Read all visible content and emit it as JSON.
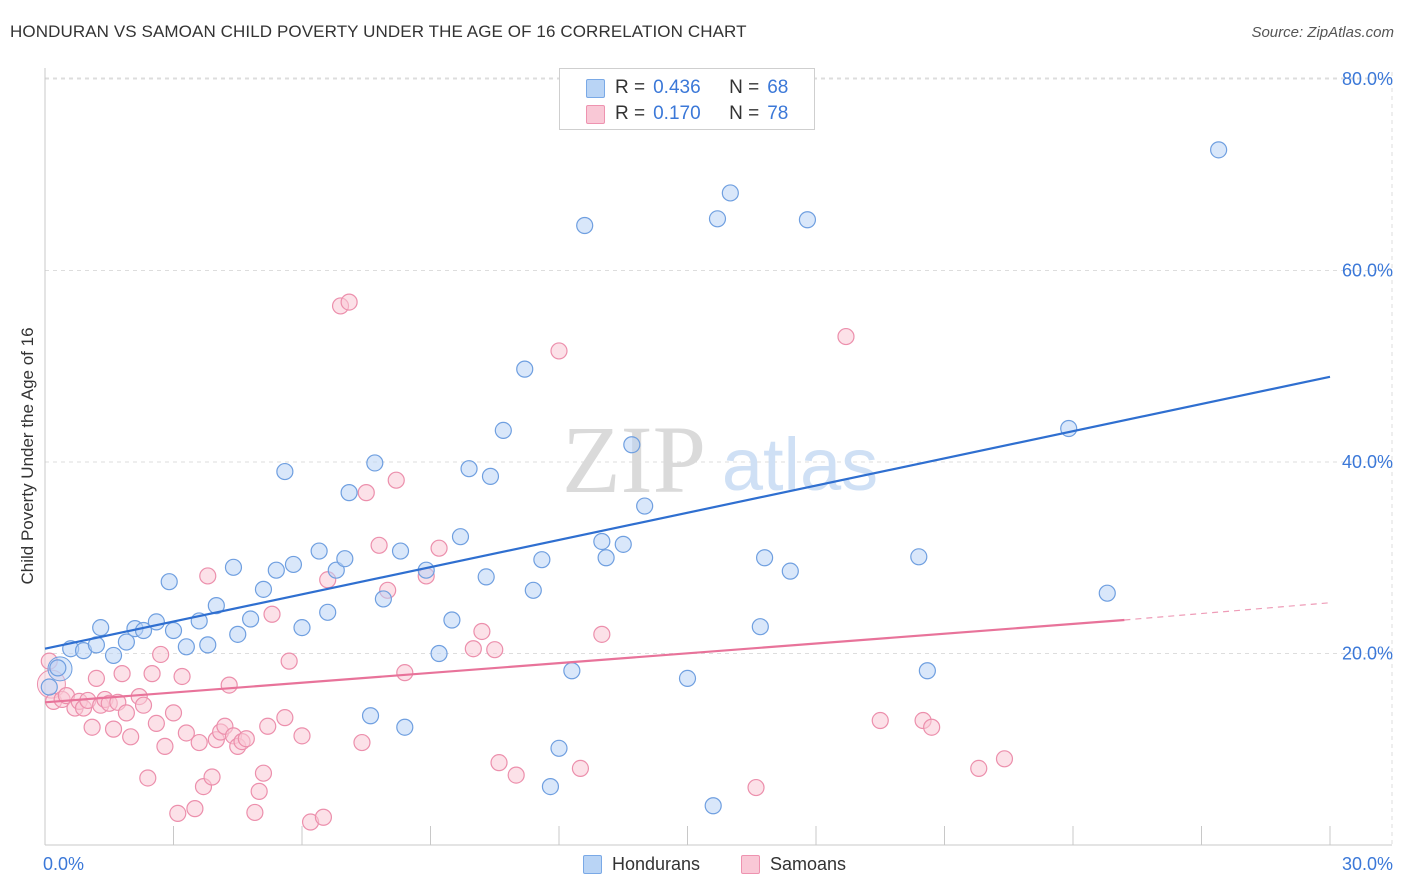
{
  "title": "HONDURAN VS SAMOAN CHILD POVERTY UNDER THE AGE OF 16 CORRELATION CHART",
  "source": "Source: ZipAtlas.com",
  "watermark": {
    "zip": "ZIP",
    "atlas": "atlas"
  },
  "legend": {
    "rows": [
      {
        "r_label": "R =",
        "r_value": "0.436",
        "n_label": "N =",
        "n_value": "68"
      },
      {
        "r_label": "R =",
        "r_value": "0.170",
        "n_label": "N =",
        "n_value": "78"
      }
    ]
  },
  "bottom_legend": {
    "hondurans": "Hondurans",
    "samoans": "Samoans"
  },
  "colors": {
    "honduran_fill": "#b9d4f5",
    "honduran_stroke": "#6f9fe0",
    "honduran_line": "#2f6fd0",
    "samoan_fill": "#f9c8d6",
    "samoan_stroke": "#ec8fac",
    "samoan_line": "#e8739a",
    "tick_label": "#3b78d8",
    "grid": "#dddddd"
  },
  "chart_data": {
    "type": "scatter",
    "title": "HONDURAN VS SAMOAN CHILD POVERTY UNDER THE AGE OF 16 CORRELATION CHART",
    "xlabel": "",
    "ylabel": "Child Poverty Under the Age of 16",
    "xlim": [
      0,
      30
    ],
    "ylim": [
      0,
      82
    ],
    "x_tick_labels": [
      {
        "value": 0,
        "label": "0.0%"
      },
      {
        "value": 30,
        "label": "30.0%"
      }
    ],
    "y_tick_labels": [
      {
        "value": 20,
        "label": "20.0%"
      },
      {
        "value": 40,
        "label": "40.0%"
      },
      {
        "value": 60,
        "label": "60.0%"
      },
      {
        "value": 80,
        "label": "80.0%"
      }
    ],
    "series": [
      {
        "name": "Hondurans",
        "R": 0.436,
        "N": 68,
        "trend": {
          "x": [
            0,
            30
          ],
          "y": [
            20.5,
            48.9
          ]
        },
        "points": [
          [
            0.1,
            16.5
          ],
          [
            0.3,
            18.5
          ],
          [
            0.6,
            20.5
          ],
          [
            0.9,
            20.3
          ],
          [
            1.2,
            20.9
          ],
          [
            1.3,
            22.7
          ],
          [
            1.6,
            19.8
          ],
          [
            1.9,
            21.2
          ],
          [
            2.1,
            22.6
          ],
          [
            2.3,
            22.4
          ],
          [
            2.6,
            23.3
          ],
          [
            2.9,
            27.5
          ],
          [
            3.0,
            22.4
          ],
          [
            3.3,
            20.7
          ],
          [
            3.6,
            23.4
          ],
          [
            3.8,
            20.9
          ],
          [
            4.0,
            25.0
          ],
          [
            4.4,
            29.0
          ],
          [
            4.5,
            22.0
          ],
          [
            4.8,
            23.6
          ],
          [
            5.1,
            26.7
          ],
          [
            5.4,
            28.7
          ],
          [
            5.6,
            39.0
          ],
          [
            5.8,
            29.3
          ],
          [
            6.0,
            22.7
          ],
          [
            6.4,
            30.7
          ],
          [
            6.6,
            24.3
          ],
          [
            6.8,
            28.7
          ],
          [
            7.0,
            29.9
          ],
          [
            7.1,
            36.8
          ],
          [
            7.6,
            13.5
          ],
          [
            7.7,
            39.9
          ],
          [
            7.9,
            25.7
          ],
          [
            8.3,
            30.7
          ],
          [
            8.4,
            12.3
          ],
          [
            8.9,
            28.7
          ],
          [
            9.2,
            20.0
          ],
          [
            9.5,
            23.5
          ],
          [
            9.7,
            32.2
          ],
          [
            9.9,
            39.3
          ],
          [
            10.3,
            28.0
          ],
          [
            10.4,
            38.5
          ],
          [
            10.7,
            43.3
          ],
          [
            11.2,
            49.7
          ],
          [
            11.4,
            26.6
          ],
          [
            11.6,
            29.8
          ],
          [
            11.8,
            6.1
          ],
          [
            12.0,
            10.1
          ],
          [
            12.3,
            18.2
          ],
          [
            12.6,
            64.7
          ],
          [
            13.0,
            31.7
          ],
          [
            13.1,
            30.0
          ],
          [
            13.5,
            31.4
          ],
          [
            13.7,
            41.8
          ],
          [
            14.0,
            35.4
          ],
          [
            15.0,
            17.4
          ],
          [
            15.6,
            4.1
          ],
          [
            15.7,
            65.4
          ],
          [
            16.0,
            68.1
          ],
          [
            16.7,
            22.8
          ],
          [
            16.8,
            30.0
          ],
          [
            17.4,
            28.6
          ],
          [
            17.8,
            65.3
          ],
          [
            20.4,
            30.1
          ],
          [
            20.6,
            18.2
          ],
          [
            23.9,
            43.5
          ],
          [
            24.8,
            26.3
          ],
          [
            27.4,
            72.6
          ]
        ]
      },
      {
        "name": "Samoans",
        "R": 0.17,
        "N": 78,
        "trend": {
          "x": [
            0,
            25.2
          ],
          "y": [
            14.9,
            23.5
          ]
        },
        "trend_dashed": {
          "x": [
            25.2,
            30
          ],
          "y": [
            23.5,
            25.3
          ]
        },
        "points": [
          [
            0.1,
            19.2
          ],
          [
            0.2,
            15.0
          ],
          [
            0.4,
            15.2
          ],
          [
            0.5,
            15.6
          ],
          [
            0.7,
            14.3
          ],
          [
            0.8,
            15.0
          ],
          [
            0.9,
            14.3
          ],
          [
            1.0,
            15.1
          ],
          [
            1.1,
            12.3
          ],
          [
            1.2,
            17.4
          ],
          [
            1.3,
            14.6
          ],
          [
            1.4,
            15.2
          ],
          [
            1.5,
            14.8
          ],
          [
            1.6,
            12.1
          ],
          [
            1.7,
            14.9
          ],
          [
            1.8,
            17.9
          ],
          [
            1.9,
            13.8
          ],
          [
            2.0,
            11.3
          ],
          [
            2.2,
            15.5
          ],
          [
            2.3,
            14.6
          ],
          [
            2.4,
            7.0
          ],
          [
            2.5,
            17.9
          ],
          [
            2.6,
            12.7
          ],
          [
            2.7,
            19.9
          ],
          [
            2.8,
            10.3
          ],
          [
            3.0,
            13.8
          ],
          [
            3.1,
            3.3
          ],
          [
            3.2,
            17.6
          ],
          [
            3.3,
            11.7
          ],
          [
            3.5,
            3.8
          ],
          [
            3.6,
            10.7
          ],
          [
            3.7,
            6.1
          ],
          [
            3.8,
            28.1
          ],
          [
            3.9,
            7.1
          ],
          [
            4.0,
            11.0
          ],
          [
            4.1,
            11.8
          ],
          [
            4.2,
            12.4
          ],
          [
            4.3,
            16.7
          ],
          [
            4.4,
            11.4
          ],
          [
            4.5,
            10.3
          ],
          [
            4.6,
            10.8
          ],
          [
            4.7,
            11.1
          ],
          [
            4.9,
            3.4
          ],
          [
            5.0,
            5.6
          ],
          [
            5.1,
            7.5
          ],
          [
            5.2,
            12.4
          ],
          [
            5.3,
            24.1
          ],
          [
            5.6,
            13.3
          ],
          [
            5.7,
            19.2
          ],
          [
            6.0,
            11.4
          ],
          [
            6.2,
            2.4
          ],
          [
            6.5,
            2.9
          ],
          [
            6.6,
            27.7
          ],
          [
            6.9,
            56.3
          ],
          [
            7.1,
            56.7
          ],
          [
            7.4,
            10.7
          ],
          [
            7.5,
            36.8
          ],
          [
            7.8,
            31.3
          ],
          [
            8.0,
            26.6
          ],
          [
            8.2,
            38.1
          ],
          [
            8.4,
            18.0
          ],
          [
            8.9,
            28.1
          ],
          [
            9.2,
            31.0
          ],
          [
            10.0,
            20.5
          ],
          [
            10.2,
            22.3
          ],
          [
            10.5,
            20.4
          ],
          [
            10.6,
            8.6
          ],
          [
            11.0,
            7.3
          ],
          [
            12.0,
            51.6
          ],
          [
            12.5,
            8.0
          ],
          [
            13.0,
            22.0
          ],
          [
            16.6,
            6.0
          ],
          [
            18.7,
            53.1
          ],
          [
            19.5,
            13.0
          ],
          [
            20.5,
            13.0
          ],
          [
            20.7,
            12.3
          ],
          [
            21.8,
            8.0
          ],
          [
            22.4,
            9.0
          ]
        ]
      }
    ]
  }
}
